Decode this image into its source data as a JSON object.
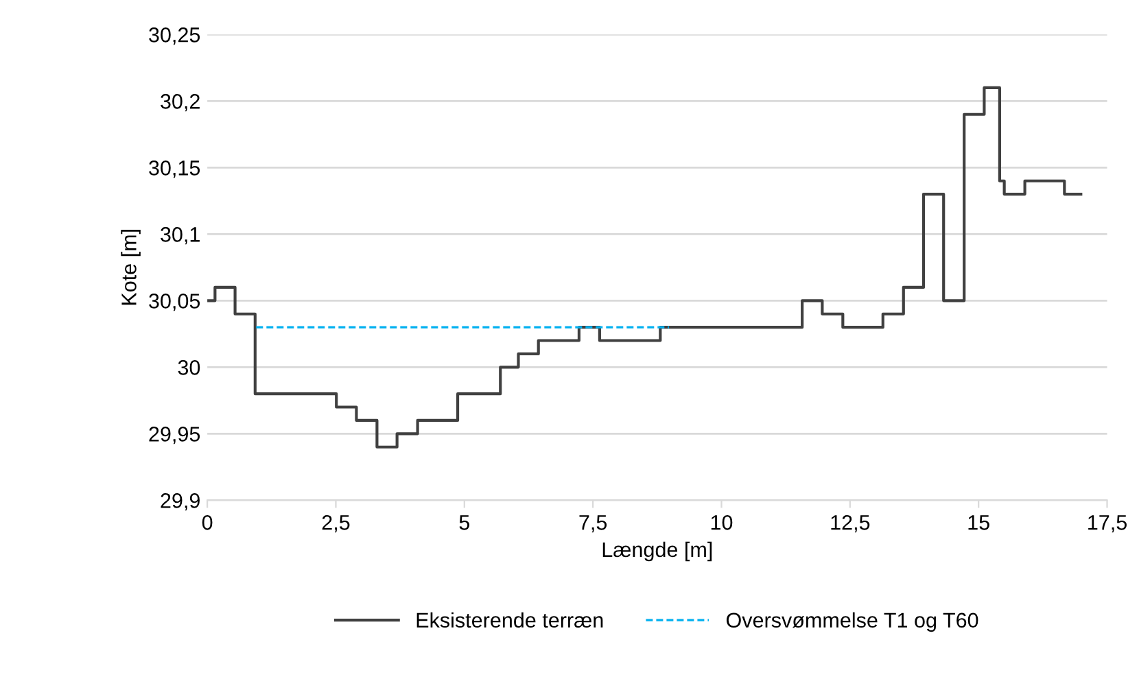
{
  "chart_data": {
    "type": "line",
    "xlabel": "Længde [m]",
    "ylabel": "Kote [m]",
    "xlim": [
      0,
      17.5
    ],
    "ylim": [
      29.9,
      30.25
    ],
    "xticks": [
      0,
      {
        "value": 2.5,
        "label": "2,5"
      },
      5,
      {
        "value": 7.5,
        "label": "7,5"
      },
      10,
      {
        "value": 12.5,
        "label": "12,5"
      },
      15,
      {
        "value": 17.5,
        "label": "17,5"
      }
    ],
    "yticks": [
      {
        "value": 29.9,
        "label": "29,9"
      },
      {
        "value": 29.95,
        "label": "29,95"
      },
      30,
      {
        "value": 30.05,
        "label": "30,05"
      },
      {
        "value": 30.1,
        "label": "30,1"
      },
      {
        "value": 30.15,
        "label": "30,15"
      },
      {
        "value": 30.2,
        "label": "30,2"
      },
      {
        "value": 30.25,
        "label": "30,25"
      }
    ],
    "grid": "y",
    "legend": "bottom",
    "series": [
      {
        "name": "Eksisterende terræn",
        "color": "#404040",
        "line_style": "solid",
        "x": [
          0.02,
          0.15,
          0.15,
          0.54,
          0.54,
          0.93,
          0.93,
          2.51,
          2.51,
          2.9,
          2.9,
          3.3,
          3.3,
          3.69,
          3.69,
          4.09,
          4.09,
          4.87,
          4.87,
          5.7,
          5.7,
          6.05,
          6.05,
          6.44,
          6.44,
          7.23,
          7.23,
          7.63,
          7.63,
          8.81,
          8.81,
          11.57,
          11.57,
          11.96,
          11.96,
          12.36,
          12.36,
          13.14,
          13.14,
          13.54,
          13.54,
          13.93,
          13.93,
          14.32,
          14.32,
          14.72,
          14.72,
          15.11,
          15.11,
          15.41,
          15.41,
          15.5,
          15.5,
          15.9,
          15.9,
          16.67,
          16.67,
          16.99
        ],
        "values": [
          30.05,
          30.05,
          30.06,
          30.06,
          30.04,
          30.04,
          29.98,
          29.98,
          29.97,
          29.97,
          29.96,
          29.96,
          29.94,
          29.94,
          29.95,
          29.95,
          29.96,
          29.96,
          29.98,
          29.98,
          30.0,
          30.0,
          30.01,
          30.01,
          30.02,
          30.02,
          30.03,
          30.03,
          30.02,
          30.02,
          30.03,
          30.03,
          30.05,
          30.05,
          30.04,
          30.04,
          30.03,
          30.03,
          30.04,
          30.04,
          30.06,
          30.06,
          30.13,
          30.13,
          30.05,
          30.05,
          30.19,
          30.19,
          30.21,
          30.21,
          30.14,
          30.14,
          30.13,
          30.13,
          30.14,
          30.14,
          30.13,
          30.13
        ]
      },
      {
        "name": "Oversvømmelse T1 og T60",
        "color": "#00b0f0",
        "line_style": "dashed",
        "x": [
          0.95,
          8.98
        ],
        "values": [
          30.03,
          30.03
        ]
      }
    ]
  }
}
